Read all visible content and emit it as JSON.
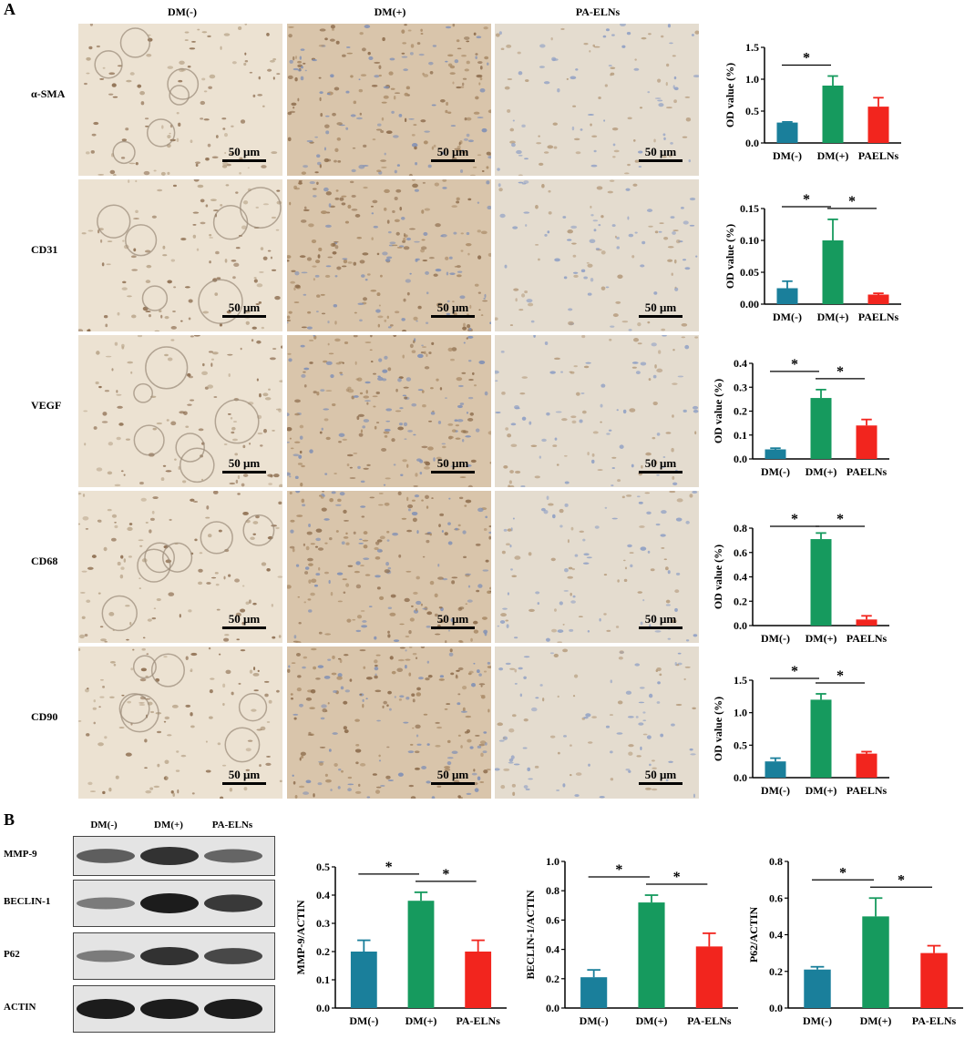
{
  "panelA": {
    "letter": "A",
    "columns": [
      "DM(-)",
      "DM(+)",
      "PA-ELNs"
    ],
    "rows": [
      {
        "label": "α-SMA",
        "scale": "50 μm"
      },
      {
        "label": "CD31",
        "scale": "50 μm"
      },
      {
        "label": "VEGF",
        "scale": "50 μm"
      },
      {
        "label": "CD68",
        "scale": "50 μm"
      },
      {
        "label": "CD90",
        "scale": "50 μm"
      }
    ]
  },
  "panelB": {
    "letter": "B",
    "columns": [
      "DM(-)",
      "DM(+)",
      "PA-ELNs"
    ],
    "bands": [
      "MMP-9",
      "BECLIN-1",
      "P62",
      "ACTIN"
    ]
  },
  "colors": {
    "dm_minus": "#1a7f9b",
    "dm_plus": "#169a5e",
    "paelns": "#f2251e"
  },
  "chart_data": [
    {
      "type": "bar",
      "categories": [
        "DM(-)",
        "DM(+)",
        "PAELNs"
      ],
      "values": [
        0.32,
        0.9,
        0.57
      ],
      "errors": [
        0.01,
        0.15,
        0.14
      ],
      "ylabel": "OD value (%)",
      "ylim": [
        0,
        1.5
      ],
      "yticks": [
        "0.0",
        "0.5",
        "1.0",
        "1.5"
      ],
      "tick_values": [
        0,
        0.5,
        1.0,
        1.5
      ],
      "significance": [
        [
          "DM(-)",
          "DM(+)"
        ]
      ]
    },
    {
      "type": "bar",
      "categories": [
        "DM(-)",
        "DM(+)",
        "PAELNs"
      ],
      "values": [
        0.025,
        0.1,
        0.015
      ],
      "errors": [
        0.011,
        0.033,
        0.002
      ],
      "ylabel": "OD value (%)",
      "ylim": [
        0,
        0.15
      ],
      "yticks": [
        "0.00",
        "0.05",
        "0.10",
        "0.15"
      ],
      "tick_values": [
        0,
        0.05,
        0.1,
        0.15
      ],
      "significance": [
        [
          "DM(-)",
          "DM(+)"
        ],
        [
          "DM(+)",
          "PAELNs"
        ]
      ]
    },
    {
      "type": "bar",
      "categories": [
        "DM(-)",
        "DM(+)",
        "PAELNs"
      ],
      "values": [
        0.04,
        0.255,
        0.14
      ],
      "errors": [
        0.005,
        0.035,
        0.025
      ],
      "ylabel": "OD value (%)",
      "ylim": [
        0,
        0.4
      ],
      "yticks": [
        "0.0",
        "0.1",
        "0.2",
        "0.3",
        "0.4"
      ],
      "tick_values": [
        0,
        0.1,
        0.2,
        0.3,
        0.4
      ],
      "significance": [
        [
          "DM(-)",
          "DM(+)"
        ],
        [
          "DM(+)",
          "PAELNs"
        ]
      ]
    },
    {
      "type": "bar",
      "categories": [
        "DM(-)",
        "DM(+)",
        "PAELNs"
      ],
      "values": [
        0.0,
        0.71,
        0.05
      ],
      "errors": [
        0,
        0.05,
        0.03
      ],
      "ylabel": "OD value (%)",
      "ylim": [
        0,
        0.8
      ],
      "yticks": [
        "0.0",
        "0.2",
        "0.4",
        "0.6",
        "0.8"
      ],
      "tick_values": [
        0,
        0.2,
        0.4,
        0.6,
        0.8
      ],
      "significance": [
        [
          "DM(-)",
          "DM(+)"
        ],
        [
          "DM(+)",
          "PAELNs"
        ]
      ]
    },
    {
      "type": "bar",
      "categories": [
        "DM(-)",
        "DM(+)",
        "PAELNs"
      ],
      "values": [
        0.25,
        1.2,
        0.37
      ],
      "errors": [
        0.05,
        0.09,
        0.03
      ],
      "ylabel": "OD value (%)",
      "ylim": [
        0,
        1.5
      ],
      "yticks": [
        "0.0",
        "0.5",
        "1.0",
        "1.5"
      ],
      "tick_values": [
        0,
        0.5,
        1.0,
        1.5
      ],
      "significance": [
        [
          "DM(-)",
          "DM(+)"
        ],
        [
          "DM(+)",
          "PAELNs"
        ]
      ]
    },
    {
      "type": "bar",
      "categories": [
        "DM(-)",
        "DM(+)",
        "PA-ELNs"
      ],
      "values": [
        0.2,
        0.38,
        0.2
      ],
      "errors": [
        0.04,
        0.03,
        0.04
      ],
      "ylabel": "MMP-9/ACTIN",
      "ylim": [
        0,
        0.5
      ],
      "yticks": [
        "0.0",
        "0.1",
        "0.2",
        "0.3",
        "0.4",
        "0.5"
      ],
      "tick_values": [
        0,
        0.1,
        0.2,
        0.3,
        0.4,
        0.5
      ],
      "significance": [
        [
          "DM(-)",
          "DM(+)"
        ],
        [
          "DM(+)",
          "PA-ELNs"
        ]
      ]
    },
    {
      "type": "bar",
      "categories": [
        "DM(-)",
        "DM(+)",
        "PA-ELNs"
      ],
      "values": [
        0.21,
        0.72,
        0.42
      ],
      "errors": [
        0.05,
        0.05,
        0.09
      ],
      "ylabel": "BECLIN-1/ACTIN",
      "ylim": [
        0,
        1.0
      ],
      "yticks": [
        "0.0",
        "0.2",
        "0.4",
        "0.6",
        "0.8",
        "1.0"
      ],
      "tick_values": [
        0,
        0.2,
        0.4,
        0.6,
        0.8,
        1.0
      ],
      "significance": [
        [
          "DM(-)",
          "DM(+)"
        ],
        [
          "DM(+)",
          "PA-ELNs"
        ]
      ]
    },
    {
      "type": "bar",
      "categories": [
        "DM(-)",
        "DM(+)",
        "PA-ELNs"
      ],
      "values": [
        0.21,
        0.5,
        0.3
      ],
      "errors": [
        0.015,
        0.1,
        0.04
      ],
      "ylabel": "P62/ACTIN",
      "ylim": [
        0,
        0.8
      ],
      "yticks": [
        "0.0",
        "0.2",
        "0.4",
        "0.6",
        "0.8"
      ],
      "tick_values": [
        0,
        0.2,
        0.4,
        0.6,
        0.8
      ],
      "significance": [
        [
          "DM(-)",
          "DM(+)"
        ],
        [
          "DM(+)",
          "PA-ELNs"
        ]
      ]
    }
  ],
  "significance_label": "*"
}
